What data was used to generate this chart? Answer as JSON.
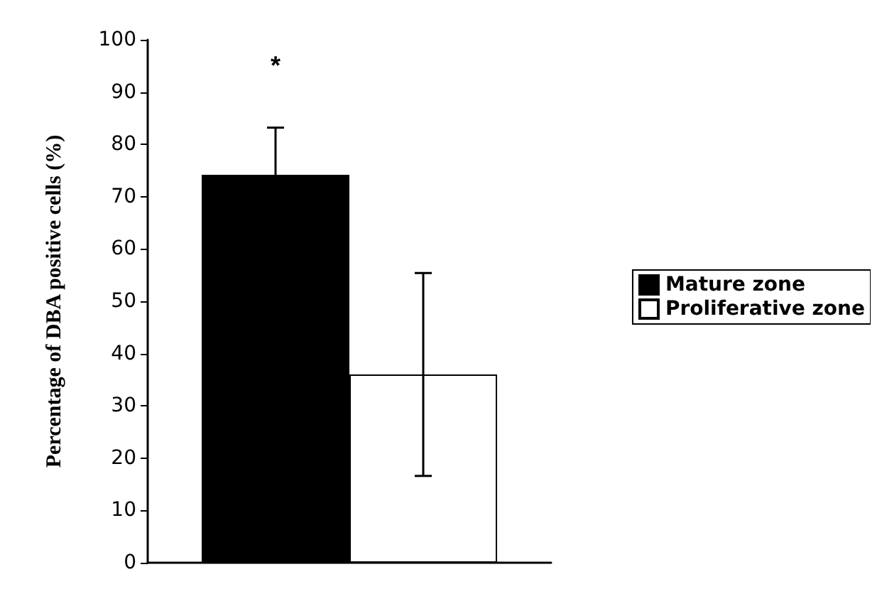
{
  "chart_data": {
    "type": "bar",
    "ylabel": "Percentage of DBA positive cells (%)",
    "categories": [
      null
    ],
    "series": [
      {
        "name": "Mature zone",
        "color": "#000000",
        "values": [
          74.2
        ],
        "errors": [
          9
        ]
      },
      {
        "name": "Proliferative zone",
        "color": "#ffffff",
        "values": [
          36
        ],
        "errors": [
          19.4
        ]
      }
    ],
    "ylim": [
      0,
      100
    ],
    "yticks": [
      0,
      10,
      20,
      30,
      40,
      50,
      60,
      70,
      80,
      90,
      100
    ],
    "annotations": [
      "*"
    ],
    "grid": false,
    "legend": "right"
  }
}
